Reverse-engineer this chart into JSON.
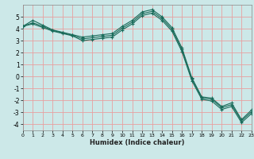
{
  "xlabel": "Humidex (Indice chaleur)",
  "background_color": "#cce8e8",
  "grid_color": "#e8a0a0",
  "line_color": "#1a6b5a",
  "xlim": [
    0,
    23
  ],
  "ylim": [
    -4.5,
    6.0
  ],
  "yticks": [
    -4,
    -3,
    -2,
    -1,
    0,
    1,
    2,
    3,
    4,
    5
  ],
  "xticks": [
    0,
    1,
    2,
    3,
    4,
    5,
    6,
    7,
    8,
    9,
    10,
    11,
    12,
    13,
    14,
    15,
    16,
    17,
    18,
    19,
    20,
    21,
    22,
    23
  ],
  "line1": [
    4.2,
    4.7,
    4.3,
    3.9,
    3.7,
    3.5,
    3.3,
    3.4,
    3.5,
    3.6,
    4.2,
    4.7,
    5.4,
    5.6,
    5.0,
    4.1,
    2.4,
    -0.1,
    -1.7,
    -1.8,
    -2.5,
    -2.2,
    -3.6,
    -2.8
  ],
  "line2": [
    4.2,
    4.5,
    4.2,
    3.85,
    3.65,
    3.45,
    3.15,
    3.25,
    3.35,
    3.45,
    4.05,
    4.55,
    5.25,
    5.45,
    4.85,
    3.95,
    2.25,
    -0.2,
    -1.8,
    -1.9,
    -2.6,
    -2.35,
    -3.7,
    -2.95
  ],
  "line3": [
    4.2,
    4.4,
    4.1,
    3.8,
    3.6,
    3.4,
    3.0,
    3.1,
    3.2,
    3.3,
    3.9,
    4.4,
    5.1,
    5.3,
    4.7,
    3.8,
    2.1,
    -0.35,
    -1.9,
    -2.05,
    -2.75,
    -2.5,
    -3.85,
    -3.1
  ]
}
